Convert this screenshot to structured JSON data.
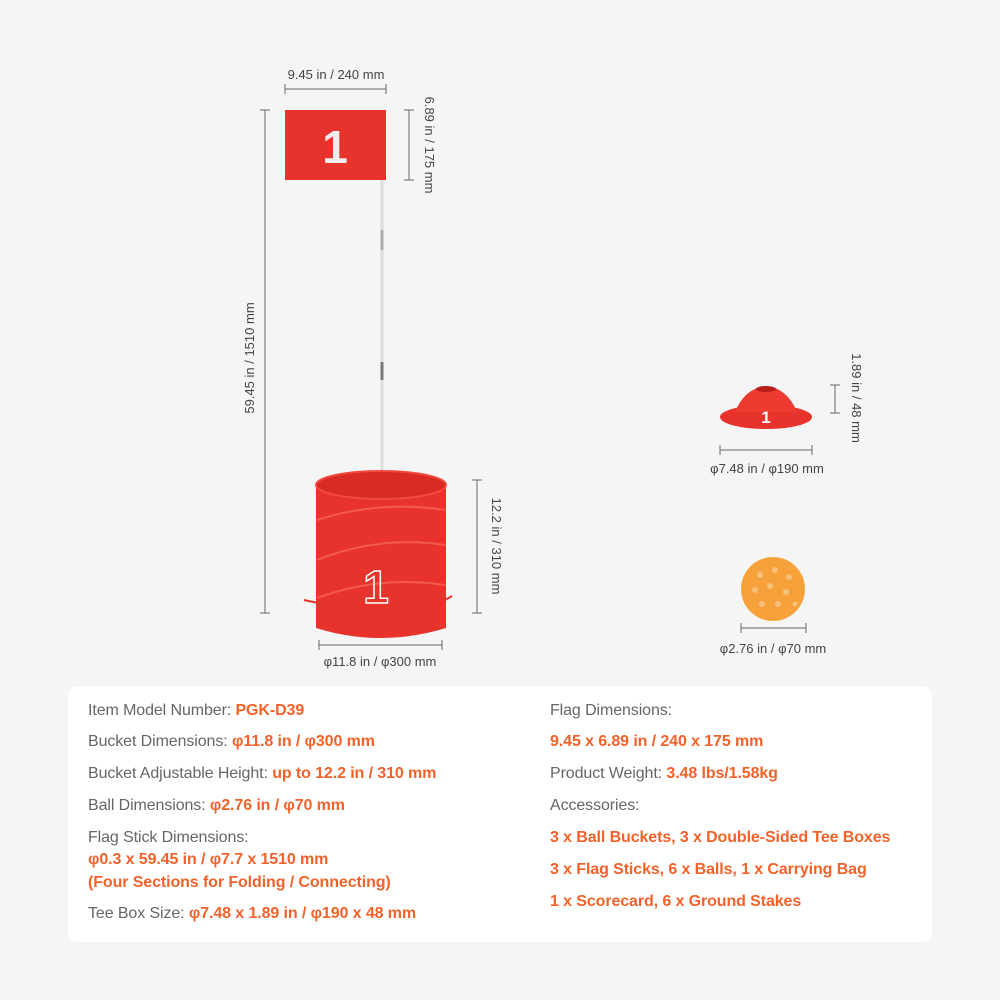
{
  "flag": {
    "number": "1",
    "width_label": "9.45 in / 240 mm",
    "height_label": "6.89 in / 175 mm"
  },
  "stick": {
    "length_label": "59.45 in / 1510 mm"
  },
  "bucket": {
    "number": "1",
    "height_label": "12.2 in / 310 mm",
    "diameter_label": "φ11.8 in / φ300 mm"
  },
  "tee_box": {
    "number": "1",
    "height_label": "1.89 in / 48 mm",
    "diameter_label": "φ7.48 in / φ190 mm"
  },
  "ball": {
    "diameter_label": "φ2.76 in / φ70 mm"
  },
  "colors": {
    "accent": "#f2622a",
    "product_red": "#e8322c",
    "ball_orange": "#f7a13a"
  },
  "specs": {
    "left": [
      {
        "label": "Item Model Number:  ",
        "value": "PGK-D39"
      },
      {
        "label": "Bucket Dimensions: ",
        "value": "φ11.8 in / φ300 mm"
      },
      {
        "label": "Bucket Adjustable Height: ",
        "value": "up to 12.2 in / 310 mm"
      },
      {
        "label": "Ball Dimensions: ",
        "value": "φ2.76 in / φ70 mm"
      },
      {
        "label": "Flag Stick Dimensions:",
        "value": "φ0.3 x 59.45 in / φ7.7 x 1510 mm",
        "value2": "(Four Sections for Folding / Connecting)"
      },
      {
        "label": "Tee Box Size: ",
        "value": "φ7.48 x 1.89 in / φ190 x 48 mm"
      }
    ],
    "right": [
      {
        "label": "Flag Dimensions:",
        "value": "9.45 x 6.89 in / 240 x 175 mm"
      },
      {
        "label": "Product Weight: ",
        "value": "3.48 lbs/1.58kg"
      },
      {
        "label": "Accessories:",
        "items": [
          "3 x Ball Buckets, 3 x Double-Sided Tee Boxes",
          "3 x Flag Sticks, 6 x Balls, 1 x Carrying Bag",
          "1 x Scorecard, 6 x Ground Stakes"
        ]
      }
    ]
  }
}
